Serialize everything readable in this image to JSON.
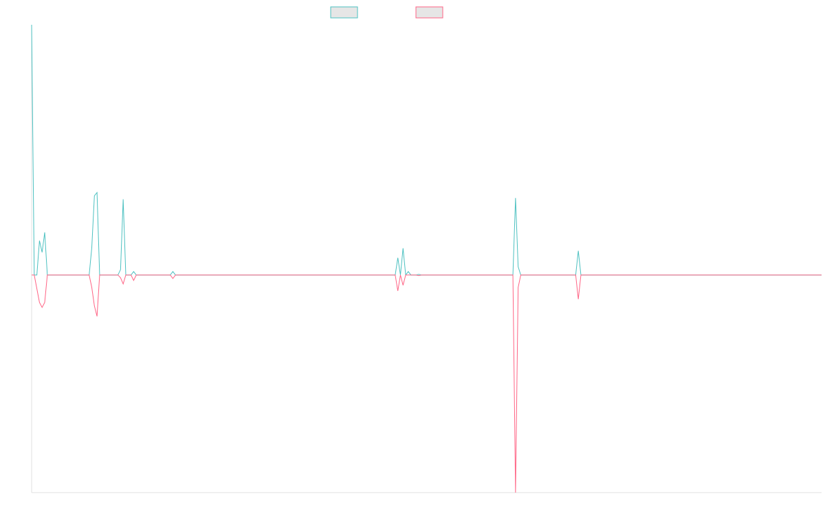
{
  "chart_data": {
    "type": "line",
    "x": [
      0,
      1,
      2,
      3,
      4,
      5,
      6,
      22,
      23,
      24,
      25,
      26,
      33,
      34,
      35,
      36,
      38,
      39,
      40,
      53,
      54,
      55,
      139,
      140,
      141,
      142,
      143,
      144,
      145,
      147,
      148,
      149,
      184,
      185,
      186,
      187,
      208,
      209,
      210,
      302
    ],
    "series": [
      {
        "color": "#4bc0c0",
        "values": [
          115,
          0,
          0,
          15.8,
          10.4,
          19.6,
          0,
          0,
          12.6,
          36.4,
          37.9,
          0,
          0,
          2.5,
          34.8,
          0,
          0,
          1.6,
          0,
          0,
          1.6,
          0,
          0,
          7.9,
          0,
          12.3,
          0,
          1.6,
          0,
          0,
          0.3,
          0,
          0,
          35.4,
          3.8,
          0,
          0,
          11.1,
          0,
          0
        ]
      },
      {
        "color": "#ff6384",
        "values": [
          0,
          0,
          -6.3,
          -12.6,
          -14.9,
          -12.6,
          0,
          0,
          -5.7,
          -14.2,
          -19,
          0,
          0,
          -1.3,
          -4.1,
          0,
          0,
          -2.5,
          0,
          0,
          -1.6,
          0,
          0,
          -7.3,
          0,
          -4.7,
          0,
          0,
          0,
          0,
          -0.3,
          0,
          0,
          -100,
          -5.7,
          0,
          0,
          -11.1,
          0,
          0
        ]
      }
    ],
    "xlim": [
      0,
      302
    ],
    "ylim": [
      -100,
      115
    ]
  }
}
